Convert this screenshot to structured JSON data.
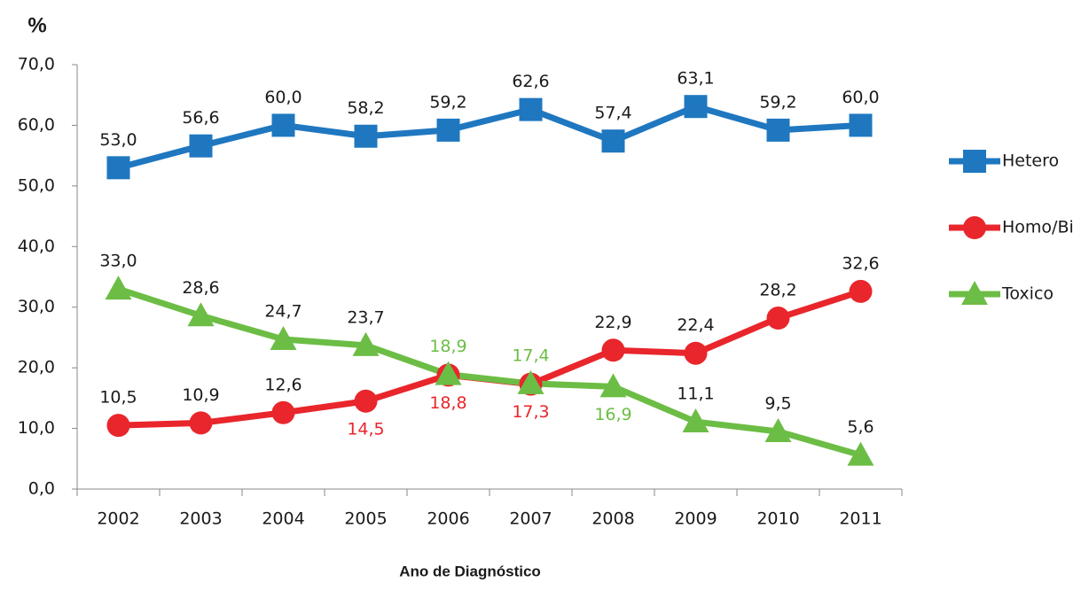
{
  "chart_data": {
    "type": "line",
    "y_label": "%",
    "x_label": "Ano de Diagnóstico",
    "categories": [
      "2002",
      "2003",
      "2004",
      "2005",
      "2006",
      "2007",
      "2008",
      "2009",
      "2010",
      "2011"
    ],
    "series": [
      {
        "name": "Hetero",
        "color": "#1f77c0",
        "marker": "square",
        "values": [
          53.0,
          56.6,
          60.0,
          58.2,
          59.2,
          62.6,
          57.4,
          63.1,
          59.2,
          60.0
        ],
        "value_labels": [
          "53,0",
          "56,6",
          "60,0",
          "58,2",
          "59,2",
          "62,6",
          "57,4",
          "63,1",
          "59,2",
          "60,0"
        ],
        "label_colors": [
          "#1a1a1a",
          "#1a1a1a",
          "#1a1a1a",
          "#1a1a1a",
          "#1a1a1a",
          "#1a1a1a",
          "#1a1a1a",
          "#1a1a1a",
          "#1a1a1a",
          "#1a1a1a"
        ]
      },
      {
        "name": "Homo/Bi",
        "color": "#e8262b",
        "marker": "circle",
        "values": [
          10.5,
          10.9,
          12.6,
          14.5,
          18.8,
          17.3,
          22.9,
          22.4,
          28.2,
          32.6
        ],
        "value_labels": [
          "10,5",
          "10,9",
          "12,6",
          "14,5",
          "18,8",
          "17,3",
          "22,9",
          "22,4",
          "28,2",
          "32,6"
        ],
        "label_colors": [
          "#1a1a1a",
          "#1a1a1a",
          "#1a1a1a",
          "#e8262b",
          "#e8262b",
          "#e8262b",
          "#1a1a1a",
          "#1a1a1a",
          "#1a1a1a",
          "#1a1a1a"
        ]
      },
      {
        "name": "Toxico",
        "color": "#6cbd45",
        "marker": "triangle",
        "values": [
          33.0,
          28.6,
          24.7,
          23.7,
          18.9,
          17.4,
          16.9,
          11.1,
          9.5,
          5.6
        ],
        "value_labels": [
          "33,0",
          "28,6",
          "24,7",
          "23,7",
          "18,9",
          "17,4",
          "16,9",
          "11,1",
          "9,5",
          "5,6"
        ],
        "label_colors": [
          "#1a1a1a",
          "#1a1a1a",
          "#1a1a1a",
          "#1a1a1a",
          "#6cbd45",
          "#6cbd45",
          "#6cbd45",
          "#1a1a1a",
          "#1a1a1a",
          "#1a1a1a"
        ]
      }
    ],
    "ylim": [
      0,
      70
    ],
    "yticks": [
      {
        "value": 0,
        "label": "0,0"
      },
      {
        "value": 10,
        "label": "10,0"
      },
      {
        "value": 20,
        "label": "20,0"
      },
      {
        "value": 30,
        "label": "30,0"
      },
      {
        "value": 40,
        "label": "40,0"
      },
      {
        "value": 50,
        "label": "50,0"
      },
      {
        "value": 60,
        "label": "60,0"
      },
      {
        "value": 70,
        "label": "70,0"
      }
    ],
    "grid": false,
    "legend": "right"
  }
}
